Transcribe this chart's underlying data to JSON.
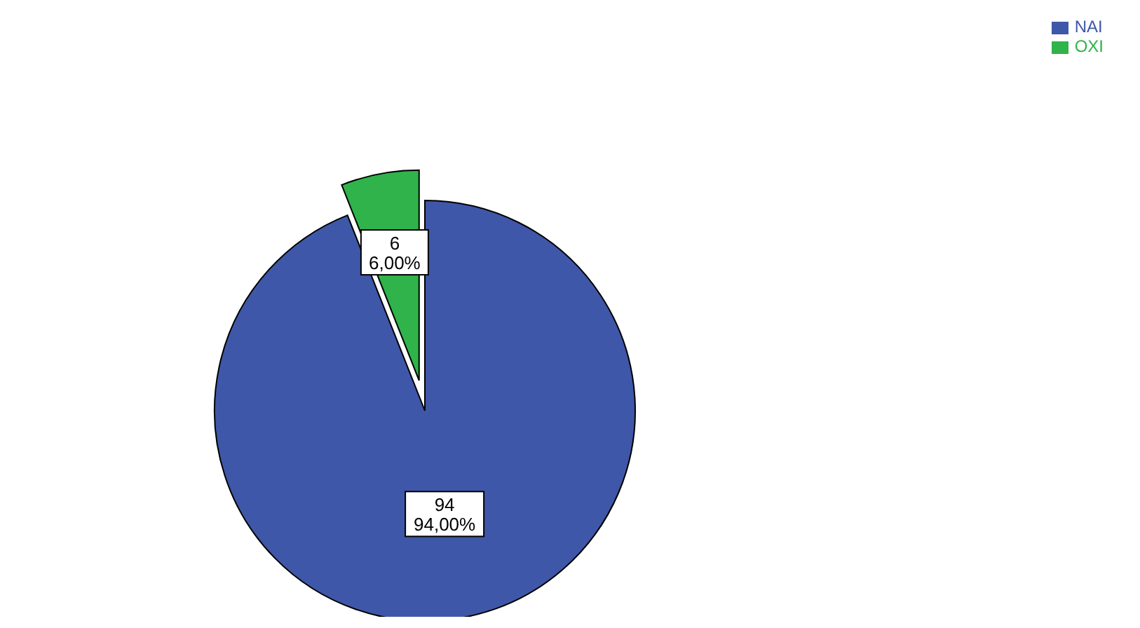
{
  "chart_data": {
    "type": "pie",
    "categories": [
      "NAI",
      "OXI"
    ],
    "values": [
      94,
      6
    ],
    "colors": [
      "#3f57a8",
      "#2fb34a"
    ],
    "value_labels": [
      "94\n94,00%",
      "6\n6,00%"
    ],
    "legend": "top right"
  }
}
